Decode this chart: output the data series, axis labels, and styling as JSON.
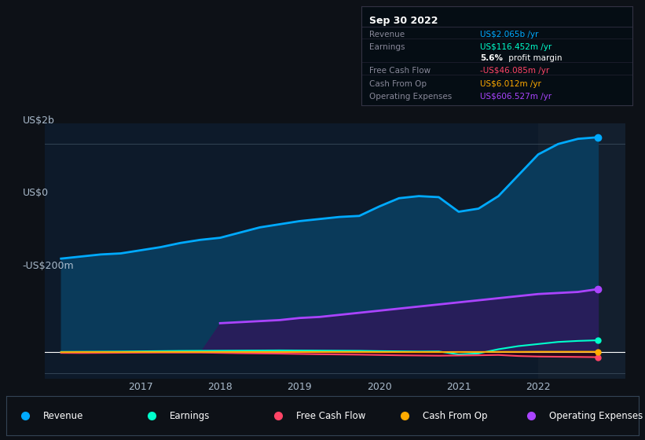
{
  "background_color": "#0d1117",
  "plot_bg_color": "#0d1a2a",
  "highlight_bg": "#131f2e",
  "years_x": [
    2016.0,
    2016.25,
    2016.5,
    2016.75,
    2017.0,
    2017.25,
    2017.5,
    2017.75,
    2018.0,
    2018.25,
    2018.5,
    2018.75,
    2019.0,
    2019.25,
    2019.5,
    2019.75,
    2020.0,
    2020.25,
    2020.5,
    2020.75,
    2021.0,
    2021.25,
    2021.5,
    2021.75,
    2022.0,
    2022.25,
    2022.5,
    2022.75
  ],
  "revenue": [
    900,
    920,
    940,
    950,
    980,
    1010,
    1050,
    1080,
    1100,
    1150,
    1200,
    1230,
    1260,
    1280,
    1300,
    1310,
    1400,
    1480,
    1500,
    1490,
    1350,
    1380,
    1500,
    1700,
    1900,
    2000,
    2050,
    2065
  ],
  "earnings": [
    5,
    6,
    7,
    8,
    10,
    12,
    14,
    15,
    16,
    17,
    18,
    19,
    18,
    17,
    16,
    15,
    12,
    10,
    8,
    9,
    -20,
    -10,
    30,
    60,
    80,
    100,
    110,
    116
  ],
  "free_cash_flow": [
    -5,
    -6,
    -5,
    -4,
    -3,
    -2,
    -2,
    -2,
    -5,
    -8,
    -10,
    -12,
    -15,
    -18,
    -20,
    -22,
    -25,
    -28,
    -30,
    -32,
    -30,
    -28,
    -25,
    -35,
    -40,
    -42,
    -44,
    -46
  ],
  "cash_from_op": [
    2,
    3,
    3,
    3,
    4,
    4,
    4,
    4,
    4,
    4,
    4,
    4,
    4,
    4,
    4,
    4,
    3,
    3,
    3,
    3,
    4,
    4,
    5,
    5,
    6,
    6,
    6,
    6
  ],
  "operating_expenses": [
    0,
    0,
    0,
    0,
    0,
    0,
    0,
    0,
    280,
    290,
    300,
    310,
    330,
    340,
    360,
    380,
    400,
    420,
    440,
    460,
    480,
    500,
    520,
    540,
    560,
    570,
    580,
    607
  ],
  "revenue_color": "#00aaff",
  "earnings_color": "#00ffcc",
  "fcf_color": "#ff4466",
  "cashop_color": "#ffaa00",
  "opex_color": "#aa44ff",
  "revenue_fill": "#0a3a5a",
  "opex_fill": "#2d1a5a",
  "cashop_fill": "#4a3a00",
  "fcf_fill": "#330011",
  "legend_entries": [
    "Revenue",
    "Earnings",
    "Free Cash Flow",
    "Cash From Op",
    "Operating Expenses"
  ],
  "legend_colors": [
    "#00aaff",
    "#00ffcc",
    "#ff4466",
    "#ffaa00",
    "#aa44ff"
  ],
  "xlim": [
    2015.8,
    2023.1
  ],
  "ylim": [
    -250,
    2200
  ],
  "tooltip_box_color": "#050d14",
  "tooltip_title": "Sep 30 2022",
  "tooltip_rows": [
    {
      "label": "Revenue",
      "value": "US$2.065b /yr",
      "value_color": "#00aaff"
    },
    {
      "label": "Earnings",
      "value": "US$116.452m /yr",
      "value_color": "#00ffcc"
    },
    {
      "label": "",
      "value": "5.6% profit margin",
      "value_color": "#ffffff"
    },
    {
      "label": "Free Cash Flow",
      "value": "-US$46.085m /yr",
      "value_color": "#ff4466"
    },
    {
      "label": "Cash From Op",
      "value": "US$6.012m /yr",
      "value_color": "#ffaa00"
    },
    {
      "label": "Operating Expenses",
      "value": "US$606.527m /yr",
      "value_color": "#aa44ff"
    }
  ]
}
